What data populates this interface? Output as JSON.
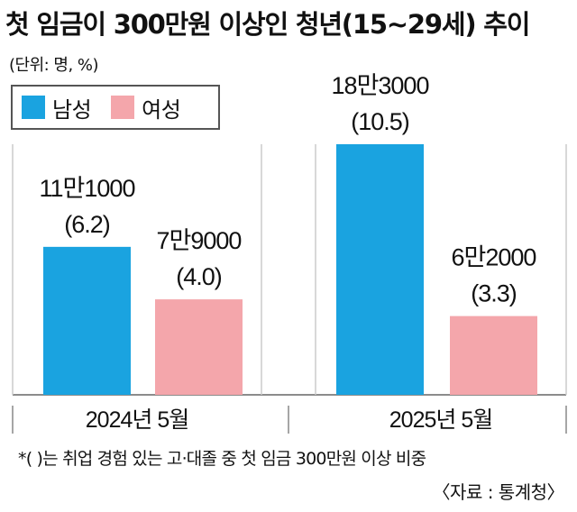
{
  "title": "첫 임금이 300만원 이상인 청년(15~29세) 추이",
  "unit_note": "(단위: 명, %)",
  "legend": [
    {
      "label": "남성",
      "color": "#1aa3e0"
    },
    {
      "label": "여성",
      "color": "#f4a6ab"
    }
  ],
  "chart_data": {
    "type": "bar",
    "categories": [
      "2024년 5월",
      "2025년 5월"
    ],
    "series": [
      {
        "name": "남성",
        "color": "#1aa3e0",
        "values": [
          6.2,
          10.5
        ],
        "counts": [
          "11만1000",
          "18만3000"
        ]
      },
      {
        "name": "여성",
        "color": "#f4a6ab",
        "values": [
          4.0,
          3.3
        ],
        "counts": [
          "7만9000",
          "6만2000"
        ]
      }
    ],
    "value_unit": "%",
    "count_unit": "명",
    "title": "첫 임금이 300만원 이상인 청년(15~29세) 추이",
    "ylim": [
      0,
      10.5
    ]
  },
  "footnote": "*(   )는 취업 경험 있는 고·대졸 중 첫 임금 300만원 이상 비중",
  "source": "〈자료 : 통계청〉"
}
